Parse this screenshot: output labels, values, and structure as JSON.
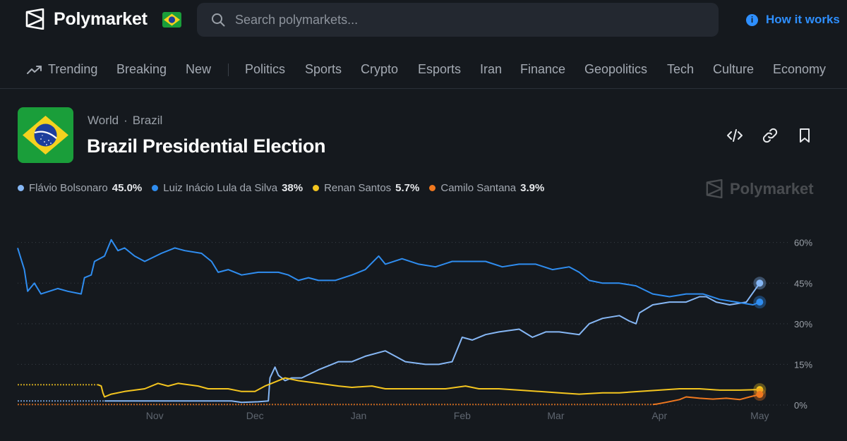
{
  "brand": {
    "name": "Polymarket"
  },
  "search": {
    "placeholder": "Search polymarkets..."
  },
  "header_links": {
    "how_it_works": "How it works"
  },
  "nav": {
    "items": [
      {
        "label": "Trending",
        "icon": "trending-icon"
      },
      {
        "label": "Breaking"
      },
      {
        "label": "New"
      },
      {
        "label": "Politics"
      },
      {
        "label": "Sports"
      },
      {
        "label": "Crypto"
      },
      {
        "label": "Esports"
      },
      {
        "label": "Iran"
      },
      {
        "label": "Finance"
      },
      {
        "label": "Geopolitics"
      },
      {
        "label": "Tech"
      },
      {
        "label": "Culture"
      },
      {
        "label": "Economy"
      }
    ]
  },
  "market": {
    "breadcrumb": [
      "World",
      "Brazil"
    ],
    "title": "Brazil Presidential Election",
    "actions": [
      "embed-icon",
      "link-icon",
      "bookmark-icon"
    ]
  },
  "outcomes": [
    {
      "name": "Flávio Bolsonaro",
      "value": "45.0%",
      "color": "#86b7f5"
    },
    {
      "name": "Luiz Inácio Lula da Silva",
      "value": "38%",
      "color": "#2f8df0"
    },
    {
      "name": "Renan Santos",
      "value": "5.7%",
      "color": "#f4c51f"
    },
    {
      "name": "Camilo Santana",
      "value": "3.9%",
      "color": "#f0781f"
    }
  ],
  "watermark": "Polymarket",
  "colors": {
    "accent": "#2e8fff",
    "background": "#15191e"
  },
  "chart_data": {
    "type": "line",
    "x_ticks": [
      "Nov",
      "Dec",
      "Jan",
      "Feb",
      "Mar",
      "Apr",
      "May"
    ],
    "x_tick_days": [
      31,
      61,
      92,
      123,
      151,
      182,
      212
    ],
    "x_range": [
      -10,
      217
    ],
    "y_ticks": [
      "60%",
      "45%",
      "30%",
      "15%",
      "0%"
    ],
    "y_tick_values": [
      60,
      45,
      30,
      15,
      0
    ],
    "ylim": [
      0,
      62
    ],
    "grid": true,
    "series": [
      {
        "name": "Flávio Bolsonaro",
        "color": "#86b7f5",
        "points": [
          [
            -10,
            1.5
          ],
          [
            16,
            1.5
          ],
          [
            30,
            1.5
          ],
          [
            45,
            1.5
          ],
          [
            54,
            1.5
          ],
          [
            57,
            1
          ],
          [
            62,
            1.2
          ],
          [
            65,
            1.5
          ],
          [
            65.5,
            10
          ],
          [
            67,
            14
          ],
          [
            68,
            11
          ],
          [
            70,
            9
          ],
          [
            72,
            10
          ],
          [
            75,
            10
          ],
          [
            80,
            13
          ],
          [
            84,
            15
          ],
          [
            86,
            16
          ],
          [
            90,
            16
          ],
          [
            94,
            18
          ],
          [
            100,
            20
          ],
          [
            103,
            18
          ],
          [
            106,
            16
          ],
          [
            112,
            15
          ],
          [
            116,
            15
          ],
          [
            120,
            16
          ],
          [
            122,
            22
          ],
          [
            123,
            25
          ],
          [
            126,
            24
          ],
          [
            130,
            26
          ],
          [
            134,
            27
          ],
          [
            140,
            28
          ],
          [
            144,
            25
          ],
          [
            148,
            27
          ],
          [
            152,
            27
          ],
          [
            158,
            26
          ],
          [
            161,
            30
          ],
          [
            165,
            32
          ],
          [
            170,
            33
          ],
          [
            173,
            31
          ],
          [
            175,
            30
          ],
          [
            176,
            34
          ],
          [
            180,
            37
          ],
          [
            185,
            38
          ],
          [
            190,
            38
          ],
          [
            194,
            40
          ],
          [
            196,
            40
          ],
          [
            199,
            38
          ],
          [
            203,
            37
          ],
          [
            208,
            38
          ],
          [
            212,
            45
          ]
        ]
      },
      {
        "name": "Luiz Inácio Lula da Silva",
        "color": "#2f8df0",
        "points": [
          [
            -10,
            58
          ],
          [
            -8,
            50
          ],
          [
            -7,
            42
          ],
          [
            -5,
            45
          ],
          [
            -3,
            41
          ],
          [
            2,
            43
          ],
          [
            5,
            42
          ],
          [
            9,
            41
          ],
          [
            10,
            47
          ],
          [
            12,
            48
          ],
          [
            13,
            53
          ],
          [
            16,
            55
          ],
          [
            18,
            61
          ],
          [
            20,
            57
          ],
          [
            22,
            58
          ],
          [
            25,
            55
          ],
          [
            28,
            53
          ],
          [
            33,
            56
          ],
          [
            37,
            58
          ],
          [
            40,
            57
          ],
          [
            45,
            56
          ],
          [
            48,
            53
          ],
          [
            50,
            49
          ],
          [
            53,
            50
          ],
          [
            57,
            48
          ],
          [
            62,
            49
          ],
          [
            68,
            49
          ],
          [
            71,
            48
          ],
          [
            74,
            46
          ],
          [
            77,
            47
          ],
          [
            80,
            46
          ],
          [
            85,
            46
          ],
          [
            90,
            48
          ],
          [
            94,
            50
          ],
          [
            98,
            55
          ],
          [
            100,
            52
          ],
          [
            105,
            54
          ],
          [
            110,
            52
          ],
          [
            115,
            51
          ],
          [
            120,
            53
          ],
          [
            125,
            53
          ],
          [
            130,
            53
          ],
          [
            135,
            51
          ],
          [
            140,
            52
          ],
          [
            145,
            52
          ],
          [
            150,
            50
          ],
          [
            155,
            51
          ],
          [
            158,
            49
          ],
          [
            161,
            46
          ],
          [
            165,
            45
          ],
          [
            170,
            45
          ],
          [
            175,
            44
          ],
          [
            180,
            41
          ],
          [
            185,
            40
          ],
          [
            190,
            41
          ],
          [
            195,
            41
          ],
          [
            200,
            39
          ],
          [
            205,
            38
          ],
          [
            210,
            37
          ],
          [
            212,
            38
          ]
        ]
      },
      {
        "name": "Renan Santos",
        "color": "#f4c51f",
        "points": [
          [
            -10,
            7.5
          ],
          [
            14,
            7.5
          ],
          [
            15,
            7
          ],
          [
            15.5,
            4.5
          ],
          [
            16,
            3
          ],
          [
            18,
            4
          ],
          [
            22,
            5
          ],
          [
            28,
            6
          ],
          [
            32,
            8
          ],
          [
            35,
            7
          ],
          [
            38,
            8
          ],
          [
            44,
            7
          ],
          [
            47,
            6
          ],
          [
            53,
            6
          ],
          [
            57,
            5
          ],
          [
            61,
            5
          ],
          [
            64,
            7
          ],
          [
            66,
            8
          ],
          [
            70,
            10
          ],
          [
            74,
            9
          ],
          [
            80,
            8
          ],
          [
            86,
            7
          ],
          [
            90,
            6.5
          ],
          [
            96,
            7
          ],
          [
            100,
            6
          ],
          [
            106,
            6
          ],
          [
            112,
            6
          ],
          [
            118,
            6
          ],
          [
            124,
            7
          ],
          [
            128,
            6
          ],
          [
            134,
            6
          ],
          [
            140,
            5.5
          ],
          [
            146,
            5
          ],
          [
            152,
            4.5
          ],
          [
            158,
            4
          ],
          [
            165,
            4.5
          ],
          [
            170,
            4.5
          ],
          [
            176,
            5
          ],
          [
            182,
            5.5
          ],
          [
            188,
            6
          ],
          [
            194,
            6
          ],
          [
            200,
            5.5
          ],
          [
            206,
            5.5
          ],
          [
            212,
            5.7
          ]
        ]
      },
      {
        "name": "Camilo Santana",
        "color": "#f0781f",
        "points": [
          [
            -10,
            0.2
          ],
          [
            180,
            0.2
          ],
          [
            181,
            0.3
          ],
          [
            184,
            1
          ],
          [
            188,
            2
          ],
          [
            190,
            3
          ],
          [
            194,
            2.5
          ],
          [
            198,
            2.2
          ],
          [
            202,
            2.5
          ],
          [
            206,
            2
          ],
          [
            209,
            3
          ],
          [
            212,
            3.9
          ]
        ]
      }
    ]
  }
}
